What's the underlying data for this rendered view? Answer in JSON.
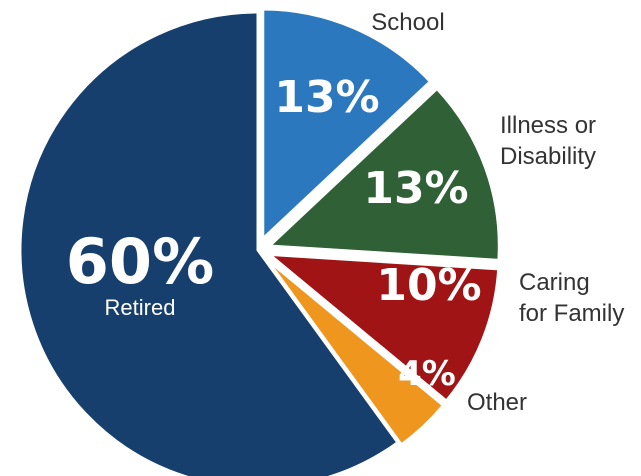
{
  "chart_data": {
    "type": "pie",
    "slices": [
      {
        "value": 60,
        "pct_label": "60%",
        "label": "Retired",
        "label_lines": [
          "Retired"
        ],
        "color": "#173f6d"
      },
      {
        "value": 13,
        "pct_label": "13%",
        "label": "School",
        "label_lines": [
          "School"
        ],
        "color": "#2c78bf"
      },
      {
        "value": 13,
        "pct_label": "13%",
        "label": "Illness or Disability",
        "label_lines": [
          "Illness or",
          "Disability"
        ],
        "color": "#2f6036"
      },
      {
        "value": 10,
        "pct_label": "10%",
        "label": "Caring for Family",
        "label_lines": [
          "Caring",
          "for Family"
        ],
        "color": "#a01416"
      },
      {
        "value": 4,
        "pct_label": "4%",
        "label": "Other",
        "label_lines": [
          "Other"
        ],
        "color": "#ef961f"
      }
    ]
  }
}
